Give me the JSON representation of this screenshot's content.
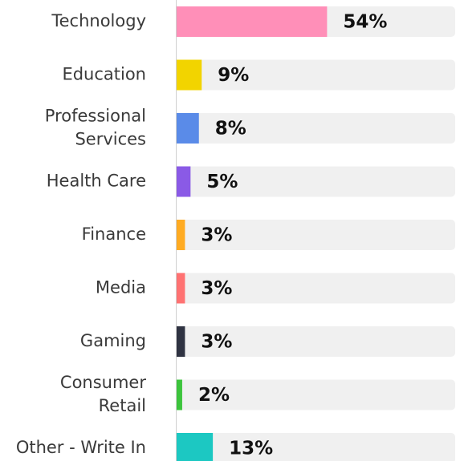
{
  "chart_data": {
    "type": "bar",
    "orientation": "horizontal",
    "categories": [
      "Technology",
      "Education",
      "Professional\nServices",
      "Health Care",
      "Finance",
      "Media",
      "Gaming",
      "Consumer\nRetail",
      "Other - Write In"
    ],
    "values": [
      54,
      9,
      8,
      5,
      3,
      3,
      3,
      2,
      13
    ],
    "value_labels": [
      "54%",
      "9%",
      "8%",
      "5%",
      "3%",
      "3%",
      "3%",
      "2%",
      "13%"
    ],
    "colors": [
      "#ff8fb8",
      "#f2d400",
      "#5a8be8",
      "#8a5ae6",
      "#ffab22",
      "#ff7272",
      "#2f3342",
      "#3cc43c",
      "#1cc8c2"
    ],
    "xlim": [
      0,
      100
    ]
  }
}
